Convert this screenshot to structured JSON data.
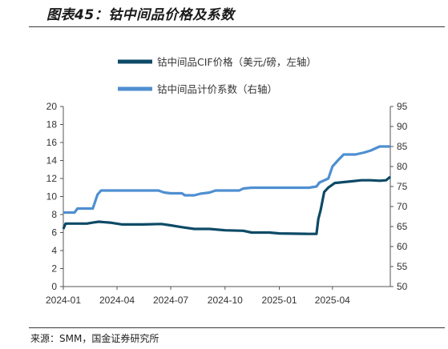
{
  "title": "图表45：钴中间品价格及系数",
  "source": "来源：SMM，国金证券研究所",
  "colors": {
    "price": "#0d4a66",
    "coef": "#4f8fd1"
  },
  "chart_data": {
    "type": "line",
    "x_ticks": [
      "2024-01",
      "2024-04",
      "2024-07",
      "2024-10",
      "2025-01",
      "2025-04"
    ],
    "y_left": {
      "ticks": [
        0,
        2,
        4,
        6,
        8,
        10,
        12,
        14,
        16,
        18,
        20
      ],
      "range": [
        0,
        20
      ]
    },
    "y_right": {
      "ticks": [
        50,
        55,
        60,
        65,
        70,
        75,
        80,
        85,
        90,
        95
      ],
      "range": [
        50,
        95
      ]
    },
    "x_range": [
      "2024-01-01",
      "2025-07-08"
    ],
    "series": [
      {
        "name": "钴中间品CIF价格（美元/磅，左轴）",
        "axis": "left",
        "points": [
          [
            "2024-01-01",
            6.4
          ],
          [
            "2024-01-05",
            7.0
          ],
          [
            "2024-02-10",
            7.0
          ],
          [
            "2024-02-20",
            7.1
          ],
          [
            "2024-03-01",
            7.2
          ],
          [
            "2024-03-20",
            7.1
          ],
          [
            "2024-04-10",
            6.9
          ],
          [
            "2024-05-15",
            6.9
          ],
          [
            "2024-06-15",
            6.95
          ],
          [
            "2024-07-01",
            6.8
          ],
          [
            "2024-07-20",
            6.6
          ],
          [
            "2024-08-10",
            6.4
          ],
          [
            "2024-09-05",
            6.4
          ],
          [
            "2024-10-01",
            6.25
          ],
          [
            "2024-11-01",
            6.2
          ],
          [
            "2024-11-15",
            6.0
          ],
          [
            "2024-12-15",
            6.0
          ],
          [
            "2025-01-01",
            5.9
          ],
          [
            "2025-02-20",
            5.85
          ],
          [
            "2025-03-05",
            5.85
          ],
          [
            "2025-03-08",
            7.5
          ],
          [
            "2025-03-12",
            8.5
          ],
          [
            "2025-03-18",
            10.5
          ],
          [
            "2025-03-25",
            11.0
          ],
          [
            "2025-04-05",
            11.5
          ],
          [
            "2025-04-20",
            11.6
          ],
          [
            "2025-05-05",
            11.7
          ],
          [
            "2025-05-20",
            11.8
          ],
          [
            "2025-06-05",
            11.8
          ],
          [
            "2025-06-20",
            11.75
          ],
          [
            "2025-07-01",
            11.8
          ],
          [
            "2025-07-08",
            12.2
          ]
        ]
      },
      {
        "name": "钴中间品计价系数（右轴）",
        "axis": "right",
        "points": [
          [
            "2024-01-01",
            68.5
          ],
          [
            "2024-01-20",
            68.5
          ],
          [
            "2024-01-25",
            69.5
          ],
          [
            "2024-02-20",
            69.5
          ],
          [
            "2024-02-28",
            73.0
          ],
          [
            "2024-03-05",
            74.0
          ],
          [
            "2024-06-10",
            74.0
          ],
          [
            "2024-06-20",
            73.5
          ],
          [
            "2024-07-01",
            73.3
          ],
          [
            "2024-07-20",
            73.3
          ],
          [
            "2024-07-25",
            72.8
          ],
          [
            "2024-08-10",
            72.8
          ],
          [
            "2024-08-20",
            73.2
          ],
          [
            "2024-09-05",
            73.5
          ],
          [
            "2024-09-15",
            74.0
          ],
          [
            "2024-10-25",
            74.0
          ],
          [
            "2024-11-01",
            74.5
          ],
          [
            "2024-11-15",
            74.7
          ],
          [
            "2025-02-20",
            74.7
          ],
          [
            "2025-03-05",
            75.0
          ],
          [
            "2025-03-10",
            76.0
          ],
          [
            "2025-03-25",
            77.0
          ],
          [
            "2025-04-01",
            80.0
          ],
          [
            "2025-04-10",
            81.5
          ],
          [
            "2025-04-20",
            83.0
          ],
          [
            "2025-05-10",
            83.0
          ],
          [
            "2025-05-25",
            83.5
          ],
          [
            "2025-06-05",
            84.0
          ],
          [
            "2025-06-20",
            85.0
          ],
          [
            "2025-07-08",
            85.0
          ]
        ]
      }
    ],
    "legend_position": "top-right",
    "grid": false
  }
}
